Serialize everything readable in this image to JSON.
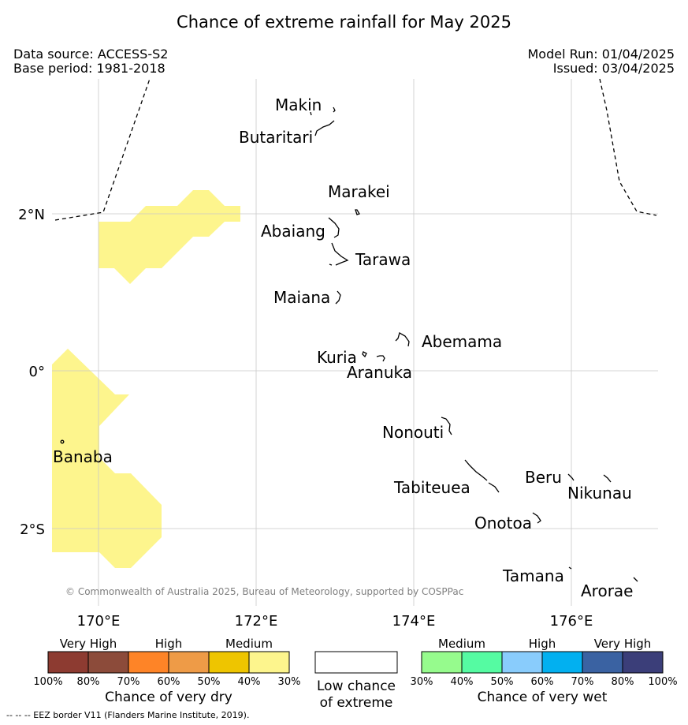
{
  "title": "Chance of extreme rainfall for May 2025",
  "header": {
    "data_source": "Data source: ACCESS-S2",
    "base_period": "Base period: 1981-2018",
    "model_run": "Model Run: 01/04/2025",
    "issued": "Issued: 03/04/2025"
  },
  "map": {
    "lat_labels": [
      "2°N",
      "0°",
      "2°S"
    ],
    "lon_labels": [
      "170°E",
      "172°E",
      "174°E",
      "176°E"
    ],
    "islands": [
      "Makin",
      "Butaritari",
      "Marakei",
      "Abaiang",
      "Tarawa",
      "Maiana",
      "Abemama",
      "Kuria",
      "Aranuka",
      "Nonouti",
      "Banaba",
      "Tabiteuea",
      "Beru",
      "Nikunau",
      "Onotoa",
      "Tamana",
      "Arorae"
    ],
    "copyright": "© Commonwealth of Australia 2025, Bureau of Meteorology, supported by COSPPac",
    "shading_color": "#fdf58d",
    "eez_style": "dashed"
  },
  "legend": {
    "dry": {
      "categories": [
        "Very High",
        "High",
        "Medium"
      ],
      "colors": [
        "#8d3b31",
        "#8c4b3a",
        "#fe8427",
        "#ee9b47",
        "#eec500",
        "#fdf58d"
      ],
      "ticks": [
        "100%",
        "80%",
        "70%",
        "60%",
        "50%",
        "40%",
        "30%"
      ],
      "title": "Chance of very dry"
    },
    "neutral": {
      "line1": "Low chance",
      "line2": "of extreme",
      "color": "#ffffff"
    },
    "wet": {
      "categories": [
        "Medium",
        "High",
        "Very High"
      ],
      "colors": [
        "#96fb8d",
        "#55fba2",
        "#89ccfc",
        "#02b0f0",
        "#3a62a2",
        "#3b3e79"
      ],
      "ticks": [
        "30%",
        "40%",
        "50%",
        "60%",
        "70%",
        "80%",
        "100%"
      ],
      "title": "Chance of very wet"
    }
  },
  "footer": "--  --  -- EEZ border V11 (Flanders Marine Institute, 2019)."
}
